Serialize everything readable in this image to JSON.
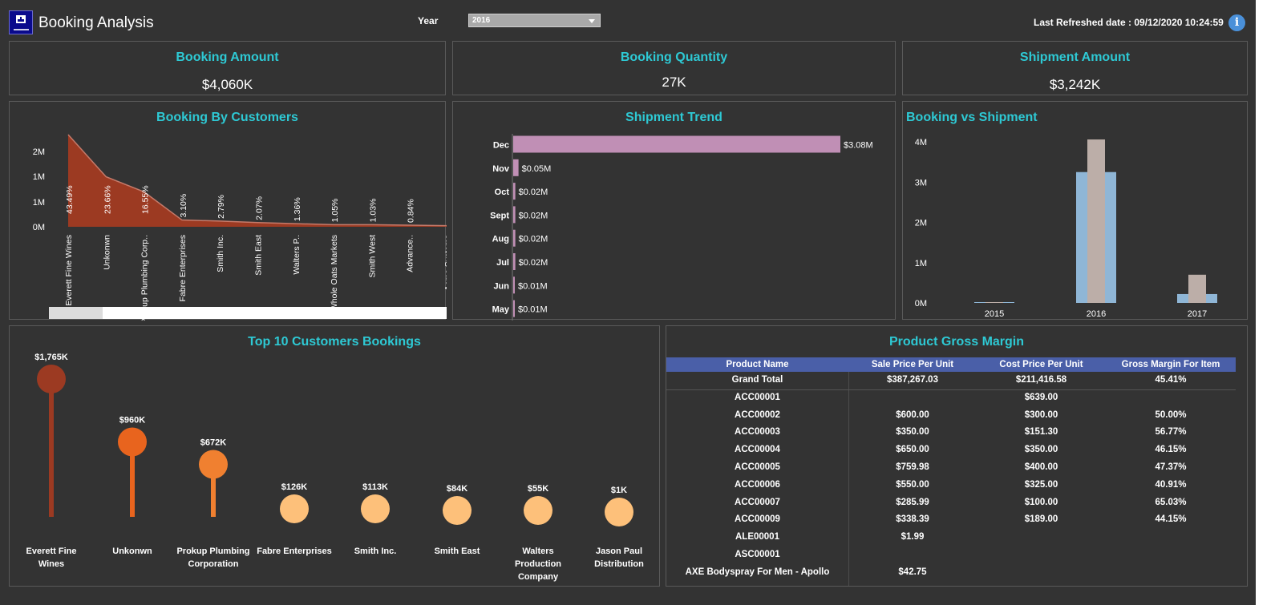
{
  "header": {
    "title": "Booking Analysis",
    "year_label": "Year",
    "year_value": "2016",
    "refresh_text": "Last Refreshed date : 09/12/2020 10:24:59",
    "info_glyph": "i"
  },
  "kpis": [
    {
      "label": "Booking Amount",
      "value": "$4,060K"
    },
    {
      "label": "Booking Quantity",
      "value": "27K"
    },
    {
      "label": "Shipment Amount",
      "value": "$3,242K"
    }
  ],
  "colors": {
    "background": "#333333",
    "title": "#2ec9d4",
    "area": "#9c3a22",
    "trend_bar": "#c08fb5",
    "booking_bar": "#8fb6d6",
    "shipment_bar": "#bcaea8",
    "table_header": "#4a5fa8",
    "lollipop": [
      "#9c3a22",
      "#e8641e",
      "#f08030",
      "#fdc07a",
      "#fdc07a",
      "#fdc07a",
      "#fdc07a",
      "#fdc07a"
    ]
  },
  "chart_data": [
    {
      "id": "booking_by_customers",
      "type": "area",
      "title": "Booking By Customers",
      "categories": [
        "Everett Fine Wines",
        "Unkonwn",
        "Prokup Plumbing Corp..",
        "Fabre Enterprises",
        "Smith Inc.",
        "Smith East",
        "Walters P..",
        "Whole Oats Markets",
        "Smith West",
        "Advance..",
        "Acme Systems"
      ],
      "values": [
        1.77,
        0.96,
        0.67,
        0.13,
        0.11,
        0.08,
        0.06,
        0.04,
        0.04,
        0.03,
        0.02
      ],
      "percent_labels": [
        "43.49%",
        "23.66%",
        "16.55%",
        "3.10%",
        "2.79%",
        "2.07%",
        "1.36%",
        "1.05%",
        "1.03%",
        "0.84%",
        ""
      ],
      "yticks": [
        "0M",
        "1M",
        "1M",
        "2M"
      ],
      "ylim": [
        0,
        2
      ]
    },
    {
      "id": "shipment_trend",
      "type": "bar",
      "title": "Shipment Trend",
      "categories": [
        "Dec",
        "Nov",
        "Oct",
        "Sept",
        "Aug",
        "Jul",
        "Jun",
        "May"
      ],
      "values": [
        3.08,
        0.05,
        0.02,
        0.02,
        0.02,
        0.02,
        0.01,
        0.01
      ],
      "labels": [
        "$3.08M",
        "$0.05M",
        "$0.02M",
        "$0.02M",
        "$0.02M",
        "$0.02M",
        "$0.01M",
        "$0.01M"
      ]
    },
    {
      "id": "booking_vs_shipment",
      "type": "bar",
      "title": "Booking vs Shipment",
      "categories": [
        "2015",
        "2016",
        "2017"
      ],
      "series": [
        {
          "values": [
            0.02,
            3.25,
            0.22
          ]
        },
        {
          "values": [
            0.02,
            4.06,
            0.7
          ]
        }
      ],
      "yticks": [
        "0M",
        "1M",
        "2M",
        "3M",
        "4M"
      ],
      "ylim": [
        0,
        4.2
      ]
    },
    {
      "id": "top10_customers",
      "type": "scatter",
      "title": "Top 10 Customers Bookings",
      "categories": [
        "Everett Fine Wines",
        "Unkonwn",
        "Prokup Plumbing Corporation",
        "Fabre Enterprises",
        "Smith Inc.",
        "Smith East",
        "Walters Production Company",
        "Jason Paul Distribution"
      ],
      "values": [
        1765,
        960,
        672,
        126,
        113,
        84,
        55,
        1
      ],
      "labels": [
        "$1,765K",
        "$960K",
        "$672K",
        "$126K",
        "$113K",
        "$84K",
        "$55K",
        "$1K"
      ]
    }
  ],
  "table": {
    "title": "Product Gross Margin",
    "columns": [
      "Product Name",
      "Sale Price Per Unit",
      "Cost Price Per Unit",
      "Gross Margin For Item"
    ],
    "rows": [
      [
        "Grand Total",
        "$387,267.03",
        "$211,416.58",
        "45.41%"
      ],
      [
        "ACC00001",
        "",
        "$639.00",
        ""
      ],
      [
        "ACC00002",
        "$600.00",
        "$300.00",
        "50.00%"
      ],
      [
        "ACC00003",
        "$350.00",
        "$151.30",
        "56.77%"
      ],
      [
        "ACC00004",
        "$650.00",
        "$350.00",
        "46.15%"
      ],
      [
        "ACC00005",
        "$759.98",
        "$400.00",
        "47.37%"
      ],
      [
        "ACC00006",
        "$550.00",
        "$325.00",
        "40.91%"
      ],
      [
        "ACC00007",
        "$285.99",
        "$100.00",
        "65.03%"
      ],
      [
        "ACC00009",
        "$338.39",
        "$189.00",
        "44.15%"
      ],
      [
        "ALE00001",
        "$1.99",
        "",
        ""
      ],
      [
        "ASC00001",
        "",
        "",
        ""
      ],
      [
        "AXE Bodyspray For Men - Apollo",
        "$42.75",
        "",
        ""
      ]
    ]
  }
}
